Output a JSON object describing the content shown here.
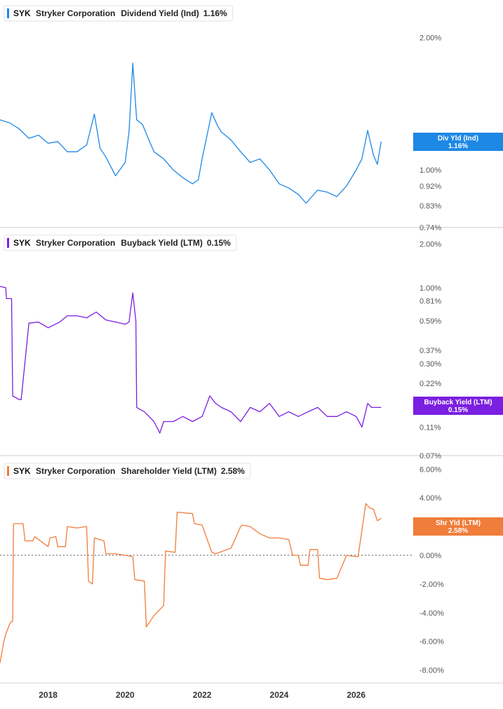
{
  "chart_data": [
    {
      "type": "line",
      "ticker": "SYK",
      "company": "Stryker Corporation",
      "metric": "Dividend Yield (Ind)",
      "last_value": "1.16%",
      "badge_label": "Div Yld (Ind)",
      "badge_value": "1.16%",
      "color": "#1e88e5",
      "y_scale": "log",
      "ylim": [
        0.74,
        2.4
      ],
      "y_ticks": [
        {
          "value": 2.0,
          "label": "2.00%"
        },
        {
          "value": 1.0,
          "label": "1.00%"
        },
        {
          "value": 0.92,
          "label": "0.92%"
        },
        {
          "value": 0.83,
          "label": "0.83%"
        },
        {
          "value": 0.74,
          "label": "0.74%"
        }
      ],
      "x": [
        2016.75,
        2017.0,
        2017.25,
        2017.5,
        2017.75,
        2018.0,
        2018.25,
        2018.5,
        2018.75,
        2019.0,
        2019.2,
        2019.35,
        2019.5,
        2019.75,
        2020.0,
        2020.1,
        2020.2,
        2020.3,
        2020.45,
        2020.6,
        2020.75,
        2021.0,
        2021.25,
        2021.5,
        2021.75,
        2021.9,
        2022.0,
        2022.25,
        2022.4,
        2022.5,
        2022.75,
        2023.0,
        2023.25,
        2023.5,
        2023.75,
        2024.0,
        2024.25,
        2024.5,
        2024.7,
        2024.85,
        2025.0,
        2025.25,
        2025.5,
        2025.75,
        2026.0,
        2026.15,
        2026.3,
        2026.45,
        2026.55,
        2026.65
      ],
      "values": [
        1.3,
        1.28,
        1.24,
        1.18,
        1.2,
        1.15,
        1.16,
        1.1,
        1.1,
        1.14,
        1.34,
        1.12,
        1.07,
        0.97,
        1.04,
        1.22,
        1.75,
        1.3,
        1.27,
        1.18,
        1.1,
        1.06,
        1.0,
        0.96,
        0.93,
        0.95,
        1.06,
        1.35,
        1.26,
        1.22,
        1.17,
        1.1,
        1.04,
        1.06,
        1.0,
        0.93,
        0.91,
        0.88,
        0.84,
        0.87,
        0.9,
        0.89,
        0.87,
        0.92,
        1.0,
        1.06,
        1.23,
        1.08,
        1.03,
        1.16
      ]
    },
    {
      "type": "line",
      "ticker": "SYK",
      "company": "Stryker Corporation",
      "metric": "Buyback Yield (LTM)",
      "last_value": "0.15%",
      "badge_label": "Buyback Yield (LTM)",
      "badge_value": "0.15%",
      "color": "#7b1fe0",
      "y_scale": "log",
      "ylim": [
        0.07,
        2.4
      ],
      "y_ticks": [
        {
          "value": 2.0,
          "label": "2.00%"
        },
        {
          "value": 1.0,
          "label": "1.00%"
        },
        {
          "value": 0.81,
          "label": "0.81%"
        },
        {
          "value": 0.59,
          "label": "0.59%"
        },
        {
          "value": 0.37,
          "label": "0.37%"
        },
        {
          "value": 0.3,
          "label": "0.30%"
        },
        {
          "value": 0.22,
          "label": "0.22%"
        },
        {
          "value": 0.11,
          "label": "0.11%"
        },
        {
          "value": 0.07,
          "label": "0.07%"
        }
      ],
      "x": [
        2016.75,
        2016.9,
        2016.92,
        2017.05,
        2017.08,
        2017.25,
        2017.3,
        2017.5,
        2017.75,
        2018.0,
        2018.3,
        2018.5,
        2018.75,
        2019.0,
        2019.25,
        2019.5,
        2019.75,
        2020.0,
        2020.1,
        2020.2,
        2020.28,
        2020.3,
        2020.5,
        2020.75,
        2020.9,
        2021.0,
        2021.25,
        2021.5,
        2021.75,
        2022.0,
        2022.2,
        2022.35,
        2022.5,
        2022.75,
        2023.0,
        2023.25,
        2023.5,
        2023.75,
        2024.0,
        2024.25,
        2024.5,
        2024.75,
        2025.0,
        2025.25,
        2025.5,
        2025.75,
        2026.0,
        2026.15,
        2026.3,
        2026.4,
        2026.55,
        2026.65
      ],
      "values": [
        1.02,
        1.0,
        0.84,
        0.84,
        0.18,
        0.17,
        0.17,
        0.57,
        0.58,
        0.53,
        0.58,
        0.64,
        0.64,
        0.62,
        0.68,
        0.6,
        0.58,
        0.56,
        0.58,
        0.92,
        0.59,
        0.15,
        0.14,
        0.12,
        0.1,
        0.12,
        0.12,
        0.13,
        0.12,
        0.13,
        0.18,
        0.16,
        0.15,
        0.14,
        0.12,
        0.15,
        0.14,
        0.16,
        0.13,
        0.14,
        0.13,
        0.14,
        0.15,
        0.13,
        0.13,
        0.14,
        0.13,
        0.11,
        0.16,
        0.15,
        0.15,
        0.15
      ]
    },
    {
      "type": "line",
      "ticker": "SYK",
      "company": "Stryker Corporation",
      "metric": "Shareholder Yield (LTM)",
      "last_value": "2.58%",
      "badge_label": "Shr Yld (LTM)",
      "badge_value": "2.58%",
      "color": "#f07d3a",
      "y_scale": "linear",
      "ylim": [
        -8.9,
        6.6
      ],
      "y_ticks": [
        {
          "value": 6,
          "label": "6.00%"
        },
        {
          "value": 4,
          "label": "4.00%"
        },
        {
          "value": 2,
          "label": "2.00%"
        },
        {
          "value": 0,
          "label": "0.00%"
        },
        {
          "value": -2,
          "label": "-2.00%"
        },
        {
          "value": -4,
          "label": "-4.00%"
        },
        {
          "value": -6,
          "label": "-6.00%"
        },
        {
          "value": -8,
          "label": "-8.00%"
        }
      ],
      "zero_line": true,
      "x": [
        2016.75,
        2016.85,
        2016.9,
        2017.0,
        2017.05,
        2017.08,
        2017.1,
        2017.35,
        2017.4,
        2017.6,
        2017.65,
        2017.9,
        2018.0,
        2018.05,
        2018.2,
        2018.25,
        2018.45,
        2018.5,
        2018.75,
        2019.0,
        2019.05,
        2019.15,
        2019.2,
        2019.45,
        2019.5,
        2019.75,
        2020.0,
        2020.2,
        2020.25,
        2020.5,
        2020.55,
        2020.75,
        2021.0,
        2021.05,
        2021.3,
        2021.35,
        2021.75,
        2021.8,
        2022.0,
        2022.25,
        2022.35,
        2022.75,
        2023.0,
        2023.05,
        2023.25,
        2023.5,
        2023.75,
        2024.0,
        2024.25,
        2024.35,
        2024.5,
        2024.55,
        2024.75,
        2024.8,
        2025.0,
        2025.05,
        2025.25,
        2025.5,
        2025.75,
        2026.0,
        2026.05,
        2026.25,
        2026.35,
        2026.45,
        2026.55,
        2026.65
      ],
      "values": [
        -7.5,
        -6.0,
        -5.5,
        -4.8,
        -4.6,
        -4.6,
        2.2,
        2.2,
        1.0,
        1.0,
        1.3,
        0.8,
        0.6,
        1.2,
        1.3,
        0.6,
        0.6,
        2.0,
        1.9,
        2.0,
        -1.8,
        -2.0,
        1.2,
        1.0,
        0.1,
        0.1,
        0.0,
        -0.1,
        -1.7,
        -1.8,
        -5.0,
        -4.2,
        -3.5,
        0.3,
        0.2,
        3.0,
        2.9,
        2.2,
        2.1,
        0.2,
        0.1,
        0.5,
        2.0,
        2.1,
        2.0,
        1.5,
        1.2,
        1.2,
        1.1,
        0.0,
        0.0,
        -0.7,
        -0.7,
        0.4,
        0.4,
        -1.6,
        -1.7,
        -1.6,
        0.0,
        -0.1,
        -0.1,
        3.6,
        3.3,
        3.2,
        2.4,
        2.58
      ]
    }
  ],
  "x_axis": {
    "xlim": [
      2016.75,
      2027.5
    ],
    "ticks": [
      {
        "value": 2018,
        "label": "2018"
      },
      {
        "value": 2020,
        "label": "2020"
      },
      {
        "value": 2022,
        "label": "2022"
      },
      {
        "value": 2024,
        "label": "2024"
      },
      {
        "value": 2026,
        "label": "2026"
      }
    ]
  }
}
